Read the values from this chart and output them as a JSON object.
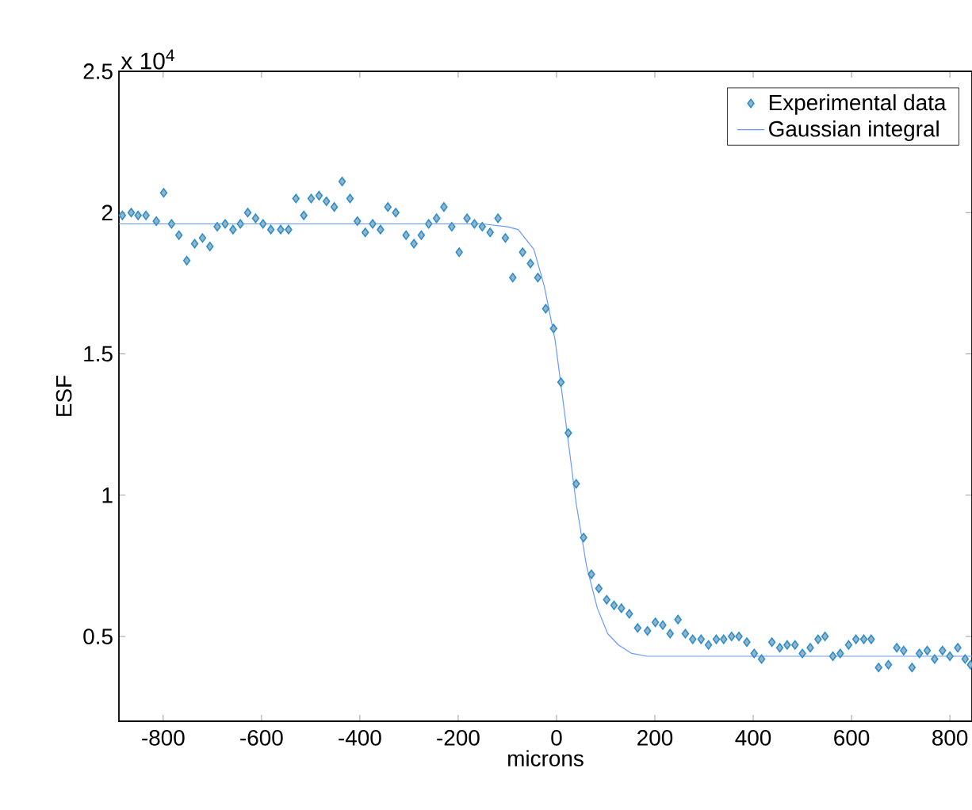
{
  "chart_data": {
    "type": "scatter",
    "xlabel": "microns",
    "ylabel": "ESF",
    "annotations": [
      "x 10$^{4}$"
    ],
    "xlim": [
      -890,
      845
    ],
    "ylim": [
      0.2,
      2.5
    ],
    "xticks": [
      -800,
      -600,
      -400,
      -200,
      0,
      200,
      400,
      600,
      800
    ],
    "yticks": [
      0.5,
      1,
      1.5,
      2,
      2.5
    ],
    "legend": "top right",
    "grid": false,
    "series": [
      {
        "name": "Experimental data",
        "marker": "diamond",
        "color": "#2a8fd0",
        "x": [
          -883,
          -865,
          -851,
          -835,
          -814,
          -799,
          -783,
          -768,
          -752,
          -736,
          -720,
          -705,
          -690,
          -674,
          -658,
          -643,
          -628,
          -612,
          -597,
          -581,
          -561,
          -545,
          -530,
          -514,
          -499,
          -483,
          -468,
          -452,
          -436,
          -420,
          -405,
          -389,
          -374,
          -358,
          -343,
          -327,
          -306,
          -290,
          -275,
          -260,
          -244,
          -229,
          -213,
          -198,
          -182,
          -167,
          -151,
          -135,
          -119,
          -104,
          -89,
          -69,
          -53,
          -38,
          -22,
          -6,
          9,
          24,
          40,
          55,
          71,
          86,
          102,
          117,
          132,
          148,
          165,
          185,
          201,
          216,
          231,
          247,
          262,
          277,
          294,
          309,
          325,
          340,
          356,
          371,
          387,
          402,
          417,
          438,
          454,
          469,
          485,
          500,
          516,
          532,
          546,
          562,
          577,
          594,
          609,
          625,
          640,
          655,
          675,
          692,
          706,
          723,
          738,
          754,
          769,
          785,
          800,
          816,
          831,
          842
        ],
        "values": [
          1.99,
          2.0,
          1.99,
          1.99,
          1.97,
          2.07,
          1.96,
          1.92,
          1.83,
          1.89,
          1.91,
          1.88,
          1.95,
          1.96,
          1.94,
          1.96,
          2.0,
          1.98,
          1.96,
          1.94,
          1.94,
          1.94,
          2.05,
          1.99,
          2.05,
          2.06,
          2.04,
          2.02,
          2.11,
          2.05,
          1.97,
          1.93,
          1.96,
          1.94,
          2.02,
          2.0,
          1.92,
          1.89,
          1.92,
          1.96,
          1.98,
          2.02,
          1.95,
          1.86,
          1.98,
          1.96,
          1.95,
          1.93,
          1.98,
          1.91,
          1.77,
          1.86,
          1.82,
          1.77,
          1.66,
          1.59,
          1.4,
          1.22,
          1.04,
          0.85,
          0.72,
          0.67,
          0.63,
          0.61,
          0.6,
          0.58,
          0.53,
          0.52,
          0.55,
          0.54,
          0.51,
          0.56,
          0.51,
          0.49,
          0.49,
          0.47,
          0.49,
          0.49,
          0.5,
          0.5,
          0.48,
          0.44,
          0.42,
          0.48,
          0.46,
          0.47,
          0.47,
          0.44,
          0.46,
          0.49,
          0.5,
          0.43,
          0.44,
          0.47,
          0.49,
          0.49,
          0.49,
          0.39,
          0.4,
          0.46,
          0.45,
          0.39,
          0.44,
          0.45,
          0.42,
          0.45,
          0.43,
          0.46,
          0.42,
          0.4
        ]
      },
      {
        "name": "Gaussian integral",
        "type": "line",
        "color": "#6699ff",
        "x": [
          -890,
          -150,
          -100,
          -78,
          -46,
          -25,
          -3,
          18,
          40,
          61,
          83,
          104,
          126,
          153,
          184,
          250,
          845
        ],
        "values": [
          1.96,
          1.96,
          1.95,
          1.94,
          1.87,
          1.74,
          1.55,
          1.27,
          0.97,
          0.75,
          0.6,
          0.51,
          0.47,
          0.44,
          0.43,
          0.43,
          0.43
        ]
      }
    ]
  }
}
